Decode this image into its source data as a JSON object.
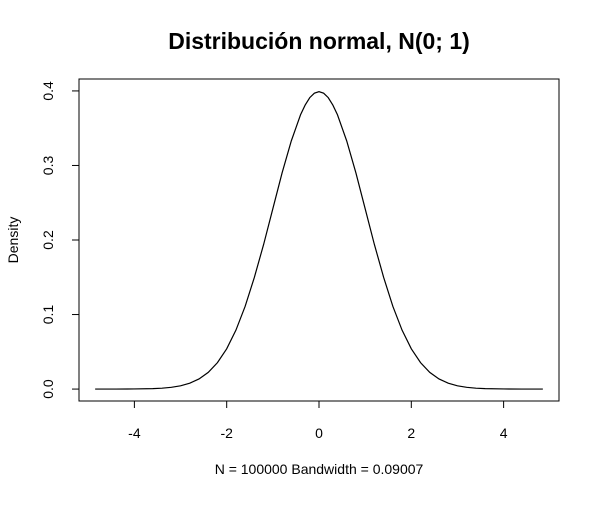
{
  "chart_data": {
    "type": "line",
    "title": "Distribución normal, N(0; 1)",
    "xlabel": "N = 100000   Bandwidth = 0.09007",
    "ylabel": "Density",
    "xlim": [
      -5.2,
      5.2
    ],
    "ylim": [
      -0.016,
      0.416
    ],
    "x_ticks": [
      -4,
      -2,
      0,
      2,
      4
    ],
    "x_tick_labels": [
      "-4",
      "-2",
      "0",
      "2",
      "4"
    ],
    "y_ticks": [
      0.0,
      0.1,
      0.2,
      0.3,
      0.4
    ],
    "y_tick_labels": [
      "0.0",
      "0.1",
      "0.2",
      "0.3",
      "0.4"
    ],
    "grid": false,
    "legend": "none",
    "line_color": "#000000",
    "series": [
      {
        "x": [
          -4.85,
          -4.4,
          -4.0,
          -3.6,
          -3.4,
          -3.2,
          -3.0,
          -2.8,
          -2.6,
          -2.4,
          -2.2,
          -2.0,
          -1.8,
          -1.6,
          -1.4,
          -1.2,
          -1.0,
          -0.8,
          -0.6,
          -0.4,
          -0.3,
          -0.2,
          -0.1,
          0.0,
          0.1,
          0.2,
          0.3,
          0.4,
          0.6,
          0.8,
          1.0,
          1.2,
          1.4,
          1.6,
          1.8,
          2.0,
          2.2,
          2.4,
          2.6,
          2.8,
          3.0,
          3.2,
          3.4,
          3.6,
          4.0,
          4.4,
          4.85
        ],
        "y": [
          0.0,
          0.0,
          0.0002,
          0.0006,
          0.0012,
          0.0024,
          0.0044,
          0.0079,
          0.0136,
          0.0224,
          0.0355,
          0.054,
          0.079,
          0.111,
          0.15,
          0.194,
          0.242,
          0.29,
          0.333,
          0.368,
          0.381,
          0.391,
          0.397,
          0.399,
          0.397,
          0.391,
          0.381,
          0.368,
          0.333,
          0.29,
          0.242,
          0.194,
          0.15,
          0.111,
          0.079,
          0.054,
          0.0355,
          0.0224,
          0.0136,
          0.0079,
          0.0044,
          0.0024,
          0.0012,
          0.0006,
          0.0002,
          0.0,
          0.0
        ]
      }
    ]
  }
}
